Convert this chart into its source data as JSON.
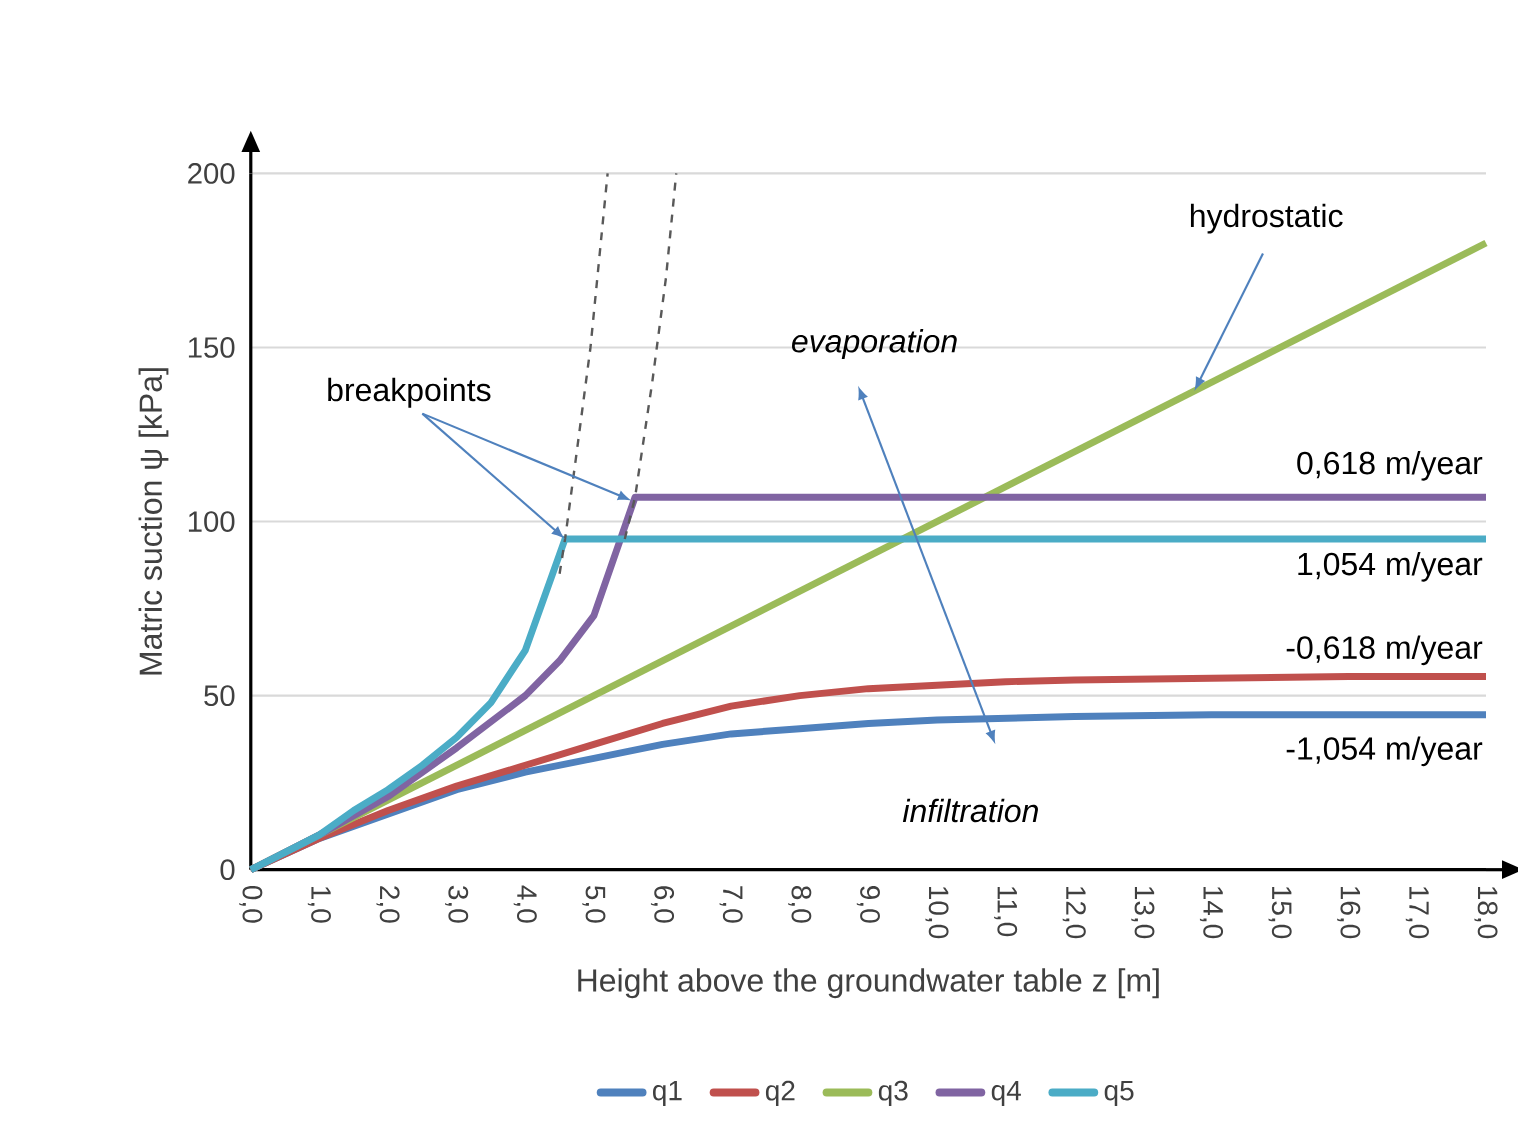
{
  "chart_data": {
    "type": "line",
    "xlabel": "Height above the groundwater table z [m]",
    "ylabel": "Matric suction ψ [kPa]",
    "xlim": [
      0,
      18
    ],
    "ylim": [
      0,
      200
    ],
    "xticks": [
      {
        "value": 0,
        "label": "0,0"
      },
      {
        "value": 1,
        "label": "1,0"
      },
      {
        "value": 2,
        "label": "2,0"
      },
      {
        "value": 3,
        "label": "3,0"
      },
      {
        "value": 4,
        "label": "4,0"
      },
      {
        "value": 5,
        "label": "5,0"
      },
      {
        "value": 6,
        "label": "6,0"
      },
      {
        "value": 7,
        "label": "7,0"
      },
      {
        "value": 8,
        "label": "8,0"
      },
      {
        "value": 9,
        "label": "9,0"
      },
      {
        "value": 10,
        "label": "10,0"
      },
      {
        "value": 11,
        "label": "11,0"
      },
      {
        "value": 12,
        "label": "12,0"
      },
      {
        "value": 13,
        "label": "13,0"
      },
      {
        "value": 14,
        "label": "14,0"
      },
      {
        "value": 15,
        "label": "15,0"
      },
      {
        "value": 16,
        "label": "16,0"
      },
      {
        "value": 17,
        "label": "17,0"
      },
      {
        "value": 18,
        "label": "18,0"
      }
    ],
    "yticks": [
      0,
      50,
      100,
      150,
      200
    ],
    "grid": "y",
    "legend": "bottom",
    "marker": "none",
    "line_style": "solid",
    "series": [
      {
        "name": "q1",
        "color": "#4f81bd",
        "x": [
          0,
          1,
          2,
          3,
          4,
          5,
          6,
          7,
          8,
          9,
          10,
          12,
          14,
          18
        ],
        "values": [
          0,
          9,
          16,
          23,
          28,
          32,
          36,
          39,
          40.5,
          42,
          43,
          44,
          44.5,
          44.5
        ]
      },
      {
        "name": "q2",
        "color": "#c0504d",
        "x": [
          0,
          1,
          2,
          3,
          4,
          5,
          6,
          7,
          8,
          9,
          10,
          11,
          12,
          14,
          16,
          18
        ],
        "values": [
          0,
          9,
          17,
          24,
          30,
          36,
          42,
          47,
          50,
          52,
          53,
          54,
          54.5,
          55,
          55.5,
          55.5
        ]
      },
      {
        "name": "q3",
        "color": "#9bbb59",
        "x": [
          0,
          18
        ],
        "values": [
          0,
          180
        ]
      },
      {
        "name": "q4",
        "color": "#8064a2",
        "x": [
          0,
          1,
          2,
          3,
          4,
          4.5,
          5,
          5.6,
          18
        ],
        "values": [
          0,
          10,
          21,
          35,
          50,
          60,
          73,
          107,
          107
        ]
      },
      {
        "name": "q5",
        "color": "#4bacc6",
        "x": [
          0,
          0.5,
          1,
          1.5,
          2,
          2.5,
          3,
          3.5,
          4,
          4.58,
          18
        ],
        "values": [
          0,
          5,
          10,
          17,
          23,
          30,
          38,
          48,
          63,
          95,
          95
        ]
      },
      {
        "color": "#595959",
        "line_style": "dashed",
        "x": [
          4.5,
          4.58,
          4.75,
          4.95,
          5.1,
          5.2
        ],
        "values": [
          85,
          95,
          120,
          150,
          180,
          200
        ]
      },
      {
        "color": "#595959",
        "line_style": "dashed",
        "x": [
          5.45,
          5.6,
          5.85,
          6.05,
          6.2
        ],
        "values": [
          95,
          107,
          140,
          170,
          200
        ]
      }
    ],
    "annotations": [
      {
        "text": "breakpoints",
        "x": 4.58,
        "y": 95
      },
      "*evaporation*",
      "*infiltration*",
      {
        "text": "hydrostatic",
        "x": 13.75,
        "y": 137.5
      },
      "0,618 m/year",
      "1,054 m/year",
      "-0,618 m/year",
      "-1,054 m/year"
    ]
  }
}
